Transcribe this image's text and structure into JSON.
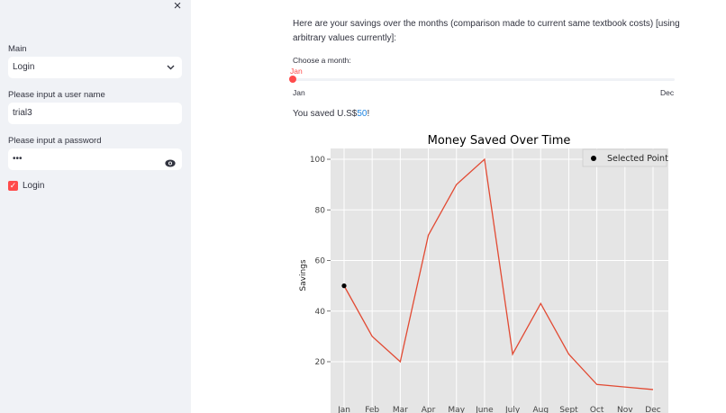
{
  "sidebar": {
    "close_glyph": "×",
    "mode_label": "Main",
    "mode_value": "Login",
    "username_label": "Please input a user name",
    "username_value": "trial3",
    "password_label": "Please input a password",
    "password_value": "•••",
    "login_checkbox_label": "Login"
  },
  "main": {
    "intro_text": "Here are your savings over the months (comparison made to current same textbook costs) [using arbitrary values currently]:",
    "slider": {
      "label": "Choose a month:",
      "value": "Jan",
      "min_label": "Jan",
      "max_label": "Dec",
      "position_fraction": 0
    },
    "saved_prefix": "You saved U.S$",
    "saved_amount": "50",
    "saved_suffix": "!"
  },
  "chart_data": {
    "type": "line",
    "title": "Money Saved Over Time",
    "xlabel": "",
    "ylabel": "Savings",
    "categories": [
      "Jan",
      "Feb",
      "Mar",
      "Apr",
      "May",
      "June",
      "July",
      "Aug",
      "Sept",
      "Oct",
      "Nov",
      "Dec"
    ],
    "series": [
      {
        "values": [
          50,
          30,
          20,
          70,
          90,
          100,
          23,
          43,
          23,
          11,
          10,
          9
        ]
      }
    ],
    "selected_point": {
      "name": "Selected Point",
      "category": "Jan",
      "value": 50
    },
    "yticks": [
      20,
      40,
      60,
      80,
      100
    ],
    "ylim": [
      5,
      105
    ],
    "grid": true,
    "legend": "top-right",
    "colors": {
      "line": "#e24a33",
      "point": "#000000",
      "plot_bg": "#e5e5e5"
    }
  },
  "colors": {
    "accent": "#ff4b4b",
    "link": "#1c83e1",
    "sidebar_bg": "#f0f2f6"
  }
}
